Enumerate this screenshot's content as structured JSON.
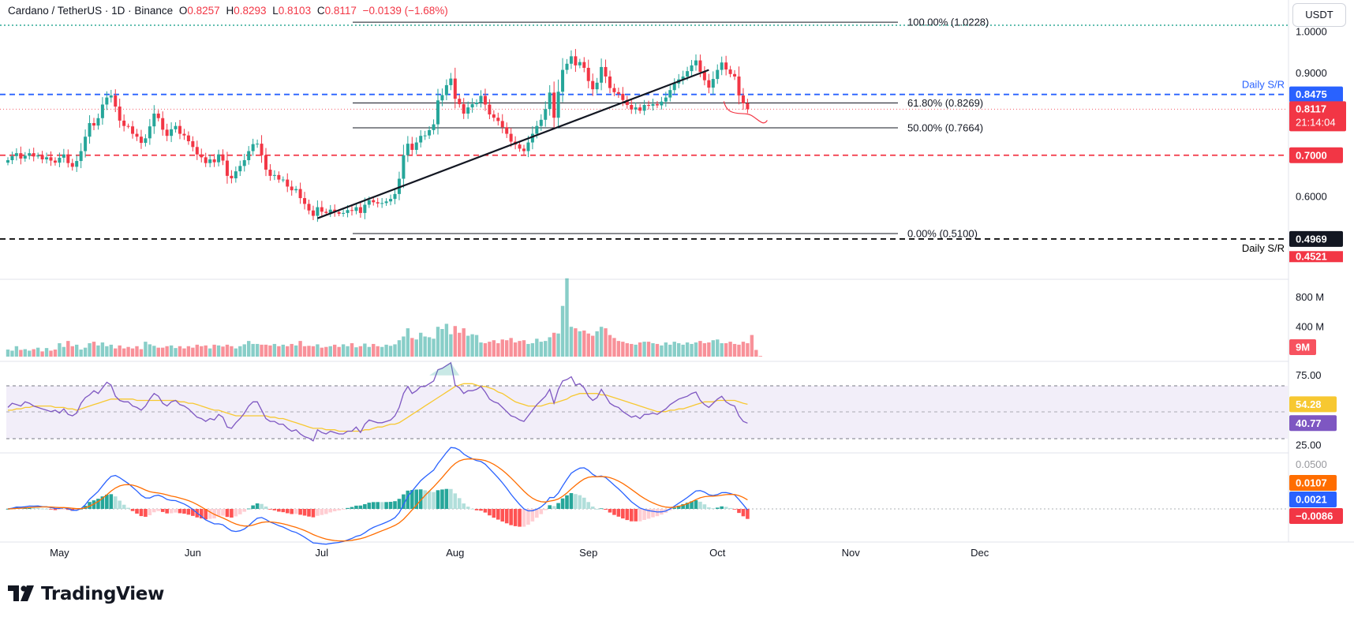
{
  "header": {
    "symbol": "Cardano / TetherUS · 1D · Binance",
    "o_label": "O",
    "o_value": "0.8257",
    "h_label": "H",
    "h_value": "0.8293",
    "l_label": "L",
    "l_value": "0.8103",
    "c_label": "C",
    "c_value": "0.8117",
    "change": "−0.0139 (−1.68%)"
  },
  "currency_button": "USDT",
  "brand": "TradingView",
  "colors": {
    "up": "#26a69a",
    "down": "#f23645",
    "blue": "#2962ff",
    "rsi": "#7e57c2",
    "rsi_ma": "#f7c831",
    "signal": "#ff6d00",
    "rsi_band": "#7e57c2"
  },
  "chart_data": [
    {
      "type": "candlestick",
      "title": "Cardano / TetherUS · 1D · Binance",
      "yaxis_ticks": [
        "1.0000",
        "0.9000",
        "0.6000"
      ],
      "xaxis_ticks": [
        "May",
        "Jun",
        "Jul",
        "Aug",
        "Sep",
        "Oct",
        "Nov",
        "Dec"
      ],
      "x_start": "2025-04-19",
      "x_end": "2025-12-01",
      "ylim": [
        0.445,
        1.04
      ],
      "closes": [
        0.688,
        0.698,
        0.705,
        0.692,
        0.699,
        0.705,
        0.697,
        0.7,
        0.69,
        0.695,
        0.687,
        0.682,
        0.694,
        0.702,
        0.681,
        0.672,
        0.686,
        0.71,
        0.745,
        0.778,
        0.772,
        0.79,
        0.823,
        0.84,
        0.845,
        0.818,
        0.784,
        0.771,
        0.77,
        0.752,
        0.745,
        0.73,
        0.741,
        0.77,
        0.801,
        0.79,
        0.762,
        0.747,
        0.763,
        0.771,
        0.752,
        0.748,
        0.734,
        0.72,
        0.702,
        0.695,
        0.681,
        0.69,
        0.683,
        0.702,
        0.687,
        0.65,
        0.644,
        0.661,
        0.674,
        0.688,
        0.71,
        0.727,
        0.728,
        0.7,
        0.665,
        0.65,
        0.652,
        0.641,
        0.641,
        0.624,
        0.615,
        0.618,
        0.596,
        0.582,
        0.566,
        0.553,
        0.574,
        0.563,
        0.56,
        0.568,
        0.562,
        0.558,
        0.56,
        0.567,
        0.565,
        0.574,
        0.56,
        0.58,
        0.591,
        0.586,
        0.583,
        0.584,
        0.588,
        0.594,
        0.606,
        0.643,
        0.7,
        0.728,
        0.713,
        0.731,
        0.747,
        0.748,
        0.761,
        0.775,
        0.833,
        0.846,
        0.87,
        0.886,
        0.837,
        0.824,
        0.801,
        0.816,
        0.824,
        0.828,
        0.844,
        0.823,
        0.799,
        0.791,
        0.783,
        0.768,
        0.752,
        0.733,
        0.726,
        0.716,
        0.71,
        0.731,
        0.752,
        0.771,
        0.786,
        0.812,
        0.852,
        0.791,
        0.854,
        0.907,
        0.922,
        0.94,
        0.918,
        0.926,
        0.912,
        0.88,
        0.86,
        0.876,
        0.914,
        0.891,
        0.863,
        0.853,
        0.849,
        0.834,
        0.822,
        0.811,
        0.816,
        0.808,
        0.822,
        0.82,
        0.824,
        0.821,
        0.83,
        0.84,
        0.858,
        0.874,
        0.884,
        0.891,
        0.904,
        0.918,
        0.93,
        0.902,
        0.882,
        0.864,
        0.885,
        0.907,
        0.925,
        0.908,
        0.897,
        0.891,
        0.845,
        0.826,
        0.8117
      ],
      "levels": [
        {
          "label": "100.00% (1.0228)",
          "value": 1.0228
        },
        {
          "label": "61.80% (0.8269)",
          "value": 0.8269
        },
        {
          "label": "50.00% (0.7664)",
          "value": 0.7664
        },
        {
          "label": "0.00% (0.5100)",
          "value": 0.51
        }
      ],
      "support_resistance": [
        {
          "label": "Daily S/R",
          "value": 0.8475,
          "tag": "0.8475",
          "color": "#2962ff"
        },
        {
          "label": "",
          "value": 0.7,
          "tag": "0.7000",
          "color": "#f23645"
        },
        {
          "label": "Daily S/R",
          "value": 0.4969,
          "tag": "0.4969",
          "color": "#000000"
        }
      ],
      "trendline": [
        {
          "x": "2025-06-30",
          "y": 0.547
        },
        {
          "x": "2025-09-29",
          "y": 0.907
        }
      ],
      "price_tag": {
        "value": 0.8117,
        "price": "0.8117",
        "countdown": "21:14:04"
      },
      "hidden_tag": {
        "value": 0.4521,
        "text": "0.4521"
      }
    },
    {
      "type": "bar",
      "title": "Volume",
      "yaxis_ticks": [
        "800 M",
        "400 M"
      ],
      "ylim": [
        0,
        1100
      ],
      "values_m": [
        95,
        80,
        140,
        90,
        100,
        80,
        100,
        120,
        70,
        115,
        80,
        95,
        180,
        130,
        210,
        140,
        160,
        95,
        120,
        180,
        200,
        150,
        190,
        140,
        160,
        110,
        150,
        110,
        130,
        110,
        140,
        100,
        200,
        165,
        145,
        120,
        120,
        140,
        150,
        115,
        140,
        110,
        140,
        120,
        160,
        140,
        150,
        110,
        160,
        150,
        135,
        160,
        140,
        110,
        140,
        165,
        210,
        170,
        170,
        160,
        160,
        150,
        170,
        140,
        160,
        140,
        170,
        150,
        210,
        140,
        145,
        140,
        165,
        120,
        130,
        140,
        160,
        130,
        165,
        140,
        180,
        125,
        140,
        175,
        130,
        170,
        140,
        130,
        160,
        145,
        165,
        220,
        270,
        380,
        250,
        230,
        320,
        270,
        260,
        240,
        400,
        370,
        440,
        300,
        410,
        320,
        380,
        280,
        300,
        290,
        190,
        180,
        200,
        220,
        180,
        230,
        220,
        250,
        190,
        210,
        220,
        170,
        180,
        240,
        200,
        210,
        260,
        320,
        310,
        680,
        1050,
        400,
        380,
        340,
        350,
        310,
        280,
        340,
        400,
        380,
        290,
        250,
        210,
        200,
        180,
        170,
        160,
        190,
        200,
        200,
        180,
        170,
        150,
        190,
        160,
        200,
        180,
        160,
        190,
        170,
        190,
        210,
        180,
        190,
        220,
        230,
        180,
        180,
        200,
        170,
        160,
        200,
        180,
        290,
        90,
        9
      ],
      "last_tag": "9M"
    },
    {
      "type": "line",
      "title": "RSI",
      "yaxis_ticks": [
        "75.00",
        "25.00"
      ],
      "ylim": [
        20,
        85
      ],
      "band": [
        30,
        70
      ],
      "rsi": [
        52,
        55,
        54,
        53,
        56,
        55,
        53,
        52,
        51,
        50,
        49,
        50,
        48,
        51,
        47,
        46,
        48,
        55,
        59,
        61,
        64,
        62,
        66,
        70,
        68,
        60,
        57,
        56,
        56,
        53,
        52,
        50,
        53,
        58,
        62,
        60,
        55,
        53,
        56,
        57,
        54,
        53,
        51,
        48,
        45,
        44,
        42,
        44,
        43,
        47,
        45,
        38,
        37,
        41,
        44,
        48,
        53,
        56,
        56,
        50,
        44,
        42,
        42,
        40,
        40,
        37,
        35,
        36,
        33,
        31,
        30,
        28,
        36,
        34,
        33,
        35,
        34,
        33,
        33,
        35,
        35,
        38,
        34,
        40,
        43,
        42,
        41,
        41,
        42,
        43,
        46,
        52,
        62,
        67,
        62,
        64,
        67,
        67,
        69,
        71,
        79,
        80,
        82,
        84,
        68,
        66,
        62,
        64,
        64,
        65,
        67,
        63,
        58,
        56,
        55,
        52,
        49,
        46,
        45,
        43,
        42,
        46,
        50,
        54,
        57,
        60,
        65,
        55,
        65,
        71,
        72,
        74,
        68,
        69,
        66,
        60,
        57,
        59,
        65,
        60,
        55,
        53,
        52,
        49,
        47,
        45,
        46,
        44,
        47,
        47,
        48,
        47,
        49,
        51,
        54,
        56,
        58,
        59,
        60,
        62,
        63,
        57,
        54,
        52,
        55,
        58,
        60,
        56,
        54,
        53,
        46,
        42,
        40.77
      ],
      "rsi_ma": [
        50,
        50,
        51,
        51,
        52,
        52,
        53,
        53,
        53,
        53,
        53,
        52,
        52,
        52,
        51,
        51,
        50,
        51,
        52,
        53,
        54,
        55,
        56,
        57,
        58,
        58,
        58,
        58,
        58,
        58,
        57,
        57,
        57,
        57,
        57,
        57,
        57,
        57,
        57,
        57,
        56,
        56,
        55,
        55,
        54,
        53,
        52,
        51,
        50,
        50,
        49,
        48,
        47,
        46,
        46,
        46,
        46,
        46,
        46,
        46,
        46,
        45,
        45,
        44,
        44,
        43,
        42,
        41,
        40,
        39,
        38,
        37,
        37,
        37,
        36,
        36,
        36,
        35,
        35,
        35,
        35,
        35,
        35,
        36,
        36,
        37,
        38,
        38,
        39,
        40,
        40,
        41,
        43,
        45,
        47,
        49,
        51,
        53,
        55,
        57,
        59,
        61,
        63,
        65,
        67,
        68,
        69,
        69,
        69,
        68,
        67,
        67,
        66,
        65,
        63,
        62,
        60,
        58,
        56,
        55,
        54,
        53,
        53,
        53,
        53,
        54,
        55,
        55,
        56,
        57,
        58,
        60,
        61,
        62,
        62,
        62,
        62,
        62,
        61,
        61,
        60,
        59,
        58,
        57,
        56,
        55,
        54,
        53,
        52,
        51,
        50,
        49,
        49,
        49,
        50,
        50,
        51,
        51,
        52,
        53,
        54,
        55,
        56,
        56,
        56,
        57,
        57,
        57,
        57,
        57,
        56,
        55,
        54.28
      ],
      "tags": [
        "54.28",
        "40.77"
      ]
    },
    {
      "type": "bar",
      "title": "MACD",
      "yaxis_ticks": [
        "0.0500"
      ],
      "ylim": [
        -0.045,
        0.06
      ],
      "tags": [
        "0.0107",
        "0.0021",
        "−0.0086"
      ],
      "values": [
        0.0107,
        0.0021,
        -0.0086
      ]
    }
  ]
}
